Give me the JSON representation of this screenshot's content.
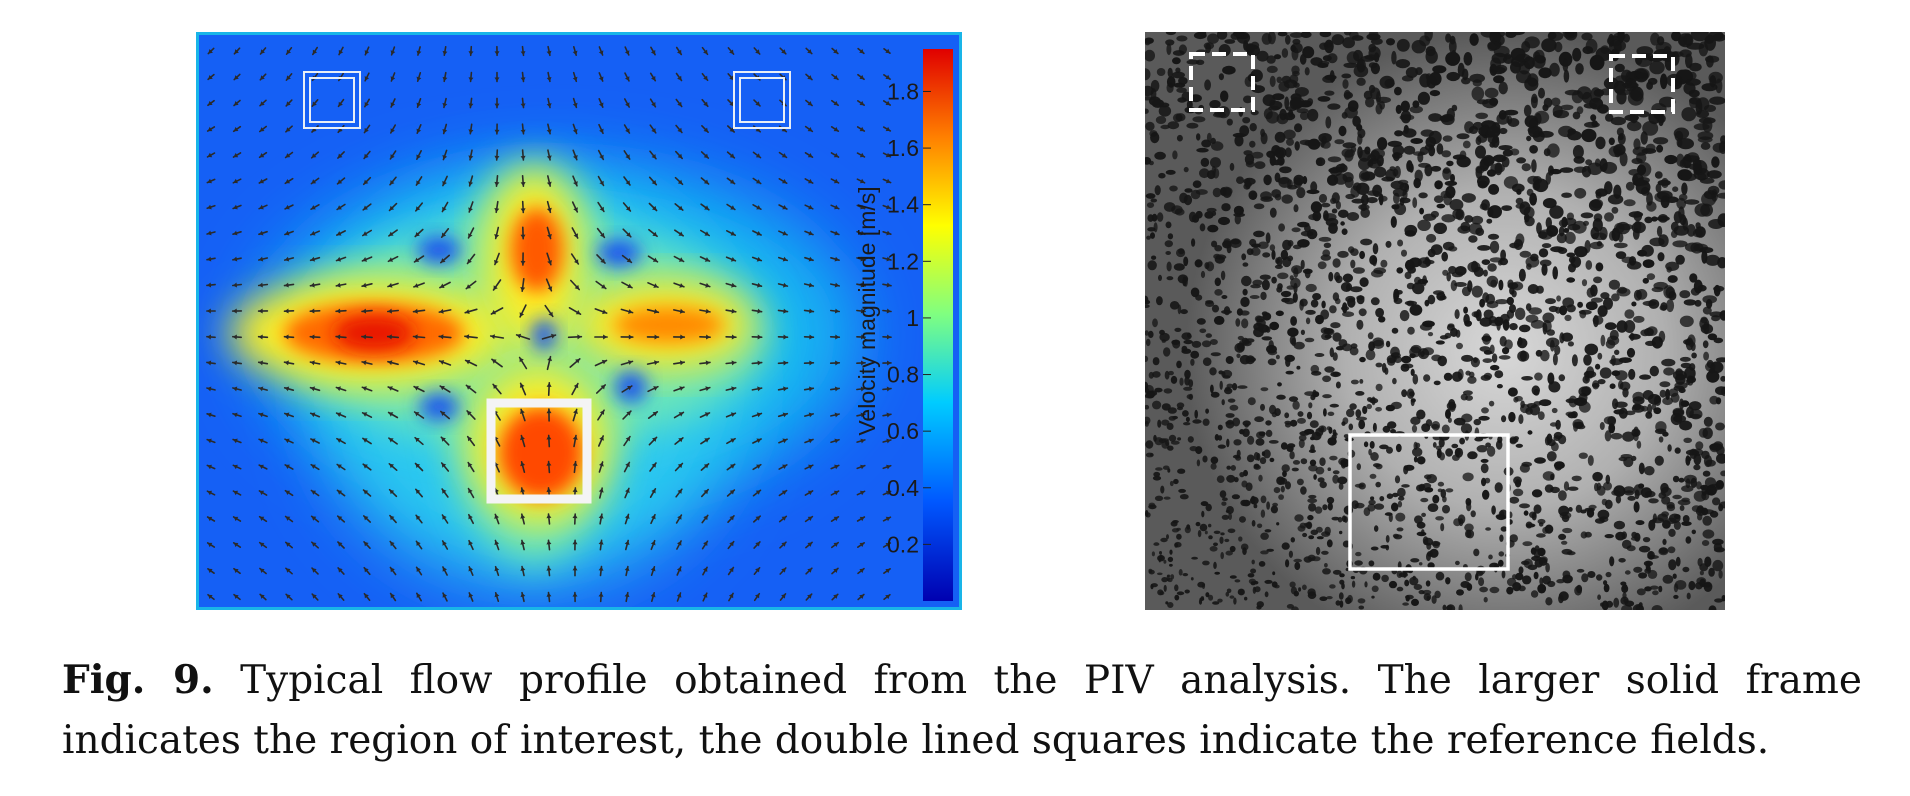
{
  "colorbar": {
    "label": "Velocity magnitude [m/s]",
    "ticks": [
      "1.8",
      "1.6",
      "1.4",
      "1.2",
      "1",
      "0.8",
      "0.6",
      "0.4",
      "0.2"
    ],
    "colormap": [
      "#0000a8",
      "#0050ff",
      "#00c8ff",
      "#7fff7f",
      "#ffff00",
      "#ff7f00",
      "#e00000"
    ]
  },
  "caption": {
    "label": "Fig. 9.",
    "text": "Typical flow profile obtained from the PIV analysis. The larger solid frame indicates the region of interest, the double lined squares indicate the reference fields."
  }
}
